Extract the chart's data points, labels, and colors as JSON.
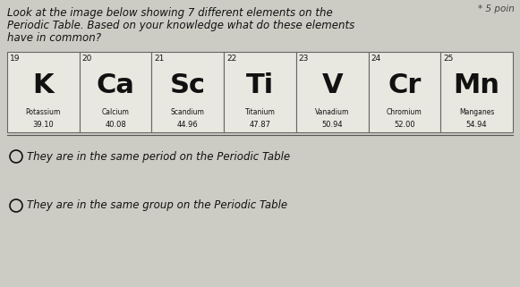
{
  "title_line1": "Look at the image below showing 7 different elements on the",
  "title_line2": "Periodic Table. Based on your knowledge what do these elements",
  "title_line3": "have in common?",
  "points_text": "* 5 poin",
  "elements": [
    {
      "number": "19",
      "symbol": "K",
      "name": "Potassium",
      "mass": "39.10"
    },
    {
      "number": "20",
      "symbol": "Ca",
      "name": "Calcium",
      "mass": "40.08"
    },
    {
      "number": "21",
      "symbol": "Sc",
      "name": "Scandium",
      "mass": "44.96"
    },
    {
      "number": "22",
      "symbol": "Ti",
      "name": "Titanium",
      "mass": "47.87"
    },
    {
      "number": "23",
      "symbol": "V",
      "name": "Vanadium",
      "mass": "50.94"
    },
    {
      "number": "24",
      "symbol": "Cr",
      "name": "Chromium",
      "mass": "52.00"
    },
    {
      "number": "25",
      "symbol": "Mn",
      "name": "Manganes",
      "mass": "54.94"
    }
  ],
  "options": [
    "They are in the same period on the Periodic Table",
    "They are in the same group on the Periodic Table"
  ],
  "bg_color": "#ccccc4",
  "cell_bg": "#e8e8e0",
  "text_color": "#111111",
  "border_color": "#666666"
}
